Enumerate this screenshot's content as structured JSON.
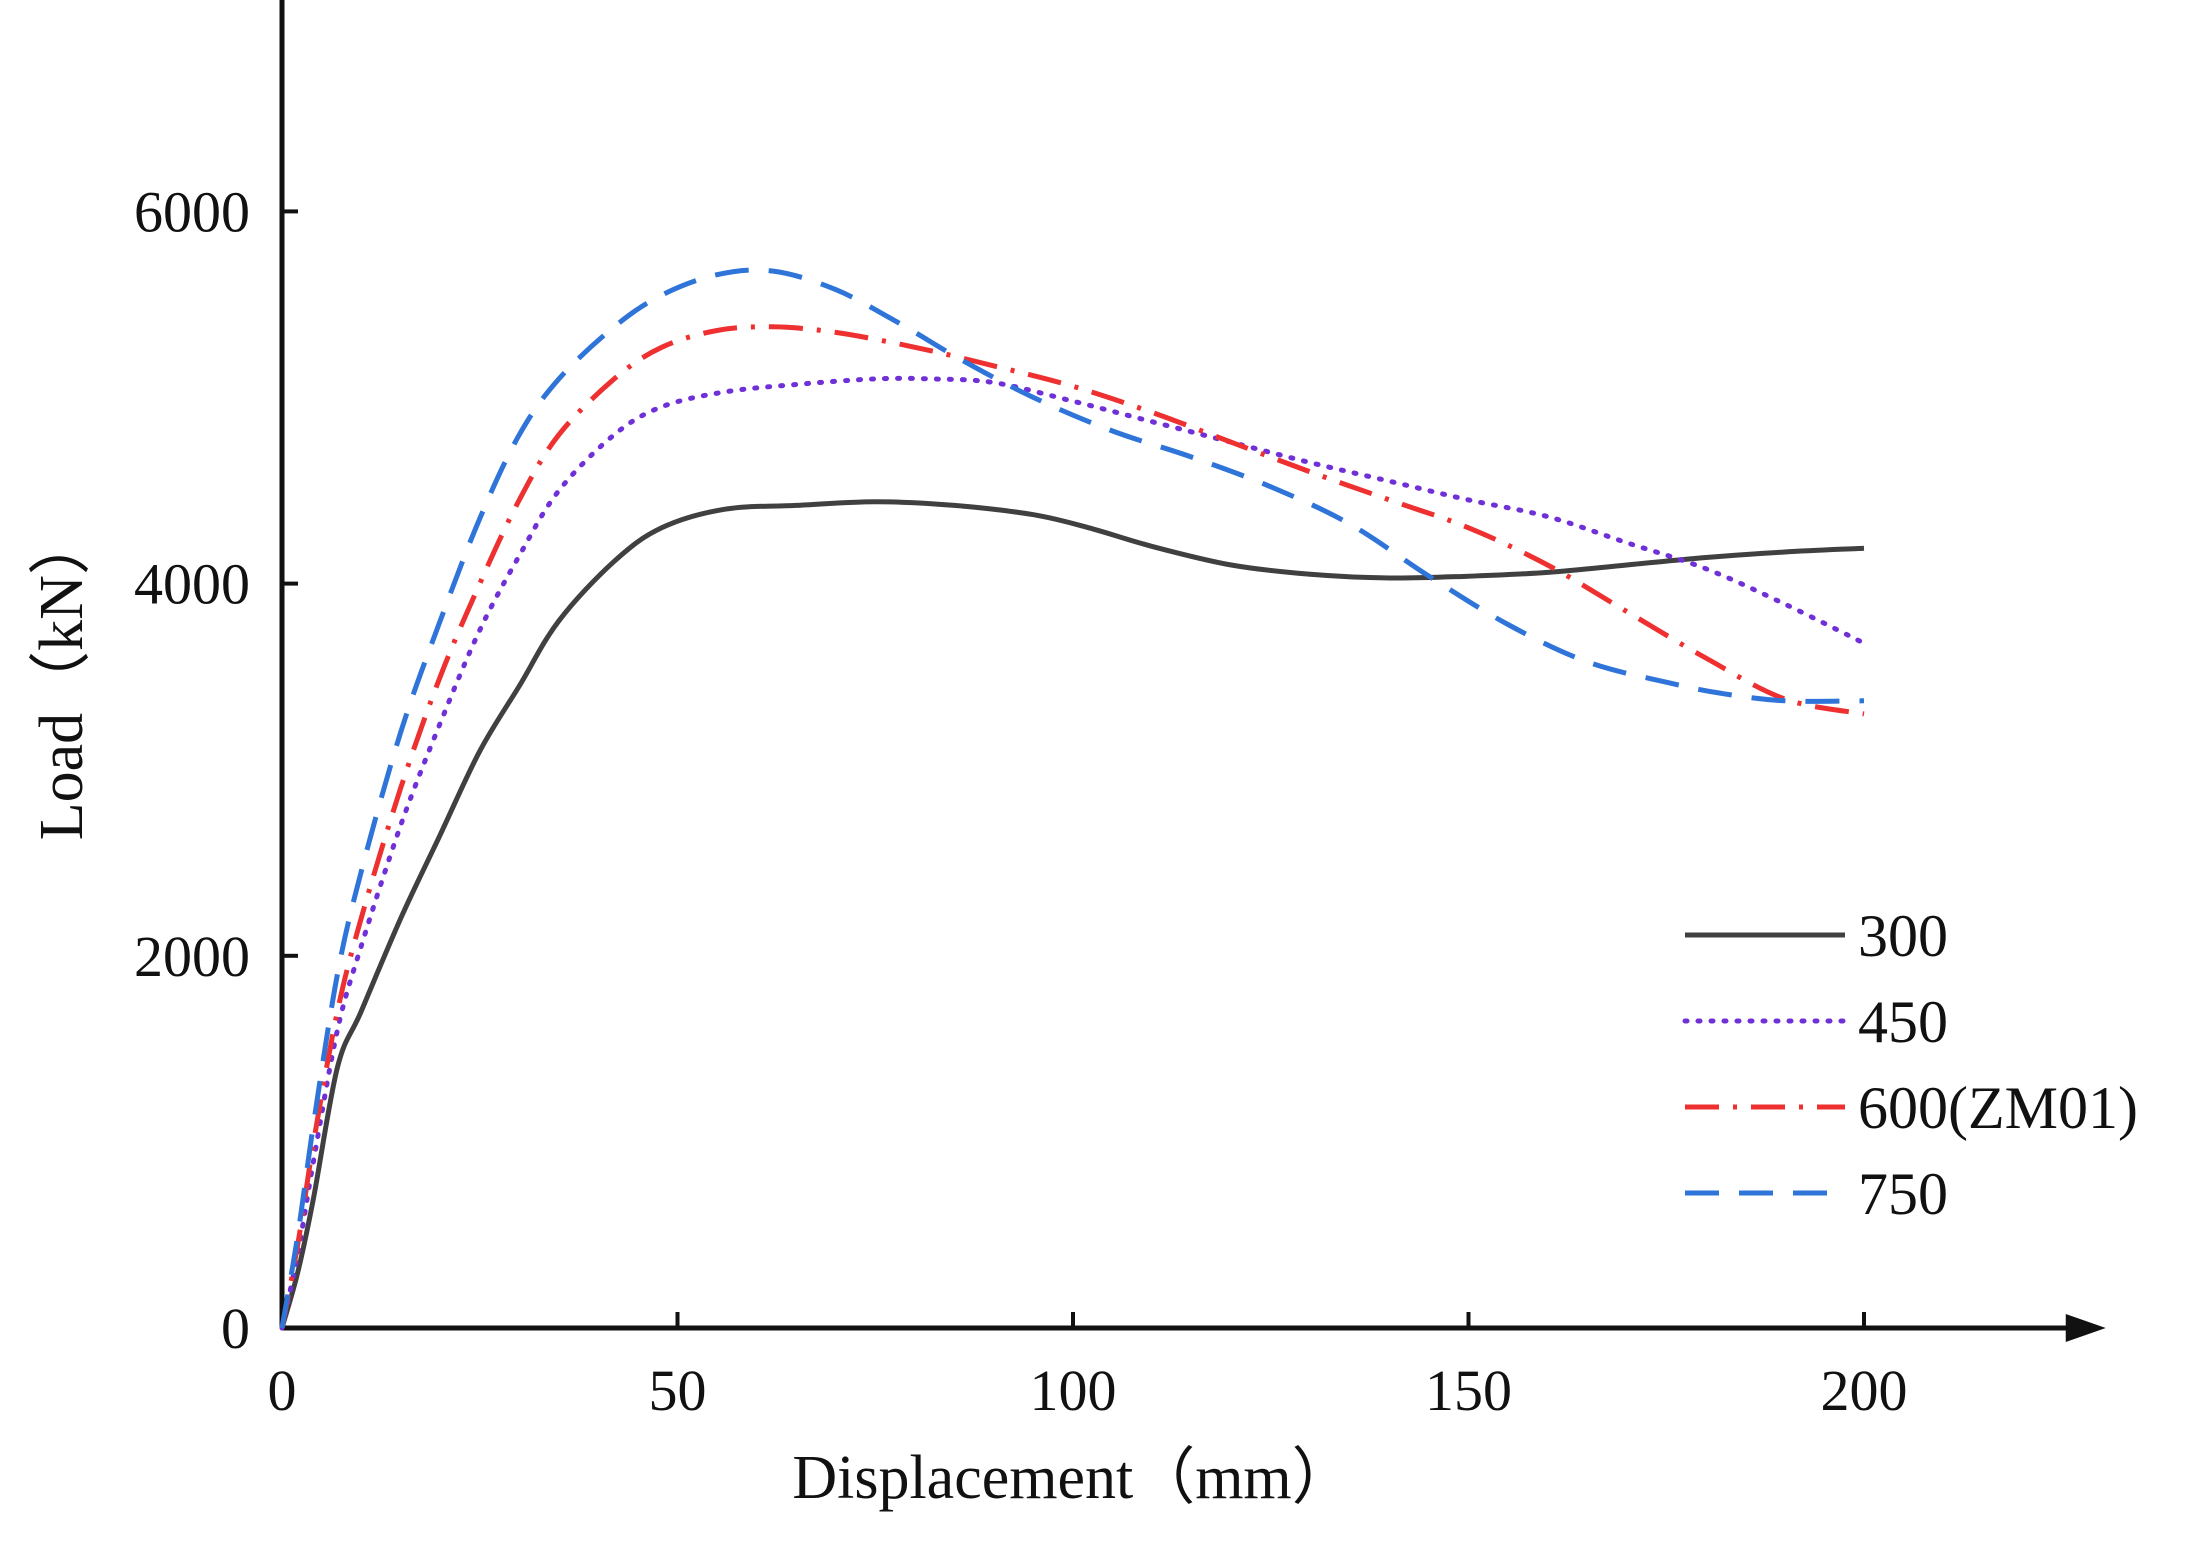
{
  "chart_data": {
    "type": "line",
    "title": "",
    "xlabel": "Displacement（mm）",
    "ylabel": "Load（kN）",
    "xlim": [
      0,
      225
    ],
    "ylim": [
      0,
      7000
    ],
    "x_ticks": [
      0,
      50,
      100,
      150,
      200
    ],
    "y_ticks": [
      0,
      2000,
      4000,
      6000
    ],
    "x_tick_labels": [
      "0",
      "50",
      "100",
      "150",
      "200"
    ],
    "y_tick_labels": [
      "0",
      "2000",
      "4000",
      "6000"
    ],
    "grid": false,
    "legend_position": "lower-right",
    "series": [
      {
        "name": "300",
        "color": "#404040",
        "dash": "solid",
        "points": [
          [
            0,
            0
          ],
          [
            2,
            300
          ],
          [
            4,
            700
          ],
          [
            7,
            1400
          ],
          [
            10,
            1700
          ],
          [
            15,
            2200
          ],
          [
            20,
            2650
          ],
          [
            25,
            3100
          ],
          [
            30,
            3450
          ],
          [
            35,
            3800
          ],
          [
            42,
            4120
          ],
          [
            48,
            4300
          ],
          [
            56,
            4400
          ],
          [
            65,
            4420
          ],
          [
            75,
            4440
          ],
          [
            85,
            4420
          ],
          [
            95,
            4370
          ],
          [
            102,
            4300
          ],
          [
            110,
            4200
          ],
          [
            120,
            4100
          ],
          [
            130,
            4050
          ],
          [
            140,
            4030
          ],
          [
            150,
            4040
          ],
          [
            160,
            4060
          ],
          [
            170,
            4100
          ],
          [
            180,
            4140
          ],
          [
            190,
            4170
          ],
          [
            200,
            4190
          ]
        ]
      },
      {
        "name": "450",
        "color": "#7030D8",
        "dash": "dotted",
        "points": [
          [
            0,
            0
          ],
          [
            2,
            400
          ],
          [
            4,
            900
          ],
          [
            7,
            1600
          ],
          [
            10,
            2050
          ],
          [
            15,
            2700
          ],
          [
            20,
            3250
          ],
          [
            25,
            3750
          ],
          [
            30,
            4150
          ],
          [
            35,
            4500
          ],
          [
            42,
            4800
          ],
          [
            48,
            4950
          ],
          [
            56,
            5030
          ],
          [
            65,
            5070
          ],
          [
            75,
            5100
          ],
          [
            82,
            5100
          ],
          [
            90,
            5080
          ],
          [
            100,
            4980
          ],
          [
            110,
            4870
          ],
          [
            120,
            4760
          ],
          [
            130,
            4650
          ],
          [
            140,
            4550
          ],
          [
            150,
            4450
          ],
          [
            160,
            4360
          ],
          [
            170,
            4220
          ],
          [
            180,
            4080
          ],
          [
            190,
            3890
          ],
          [
            200,
            3680
          ]
        ]
      },
      {
        "name": "600(ZM01)",
        "color": "#EE3030",
        "dash": "dashdot",
        "points": [
          [
            0,
            0
          ],
          [
            2,
            450
          ],
          [
            4,
            1000
          ],
          [
            7,
            1700
          ],
          [
            10,
            2200
          ],
          [
            15,
            2900
          ],
          [
            20,
            3500
          ],
          [
            25,
            4000
          ],
          [
            30,
            4450
          ],
          [
            35,
            4800
          ],
          [
            42,
            5100
          ],
          [
            48,
            5270
          ],
          [
            55,
            5360
          ],
          [
            62,
            5380
          ],
          [
            70,
            5350
          ],
          [
            80,
            5270
          ],
          [
            90,
            5170
          ],
          [
            100,
            5060
          ],
          [
            110,
            4920
          ],
          [
            120,
            4760
          ],
          [
            130,
            4600
          ],
          [
            140,
            4450
          ],
          [
            150,
            4300
          ],
          [
            160,
            4100
          ],
          [
            170,
            3850
          ],
          [
            180,
            3600
          ],
          [
            190,
            3380
          ],
          [
            200,
            3300
          ]
        ]
      },
      {
        "name": "750",
        "color": "#2F74D8",
        "dash": "dashed",
        "points": [
          [
            0,
            0
          ],
          [
            2,
            500
          ],
          [
            4,
            1100
          ],
          [
            7,
            1900
          ],
          [
            10,
            2450
          ],
          [
            15,
            3200
          ],
          [
            20,
            3800
          ],
          [
            25,
            4350
          ],
          [
            30,
            4800
          ],
          [
            35,
            5100
          ],
          [
            42,
            5380
          ],
          [
            48,
            5550
          ],
          [
            55,
            5660
          ],
          [
            62,
            5680
          ],
          [
            70,
            5580
          ],
          [
            78,
            5400
          ],
          [
            86,
            5200
          ],
          [
            95,
            5000
          ],
          [
            105,
            4820
          ],
          [
            115,
            4680
          ],
          [
            125,
            4520
          ],
          [
            135,
            4320
          ],
          [
            145,
            4040
          ],
          [
            155,
            3780
          ],
          [
            165,
            3580
          ],
          [
            175,
            3470
          ],
          [
            182,
            3410
          ],
          [
            190,
            3370
          ],
          [
            200,
            3370
          ]
        ]
      }
    ]
  }
}
